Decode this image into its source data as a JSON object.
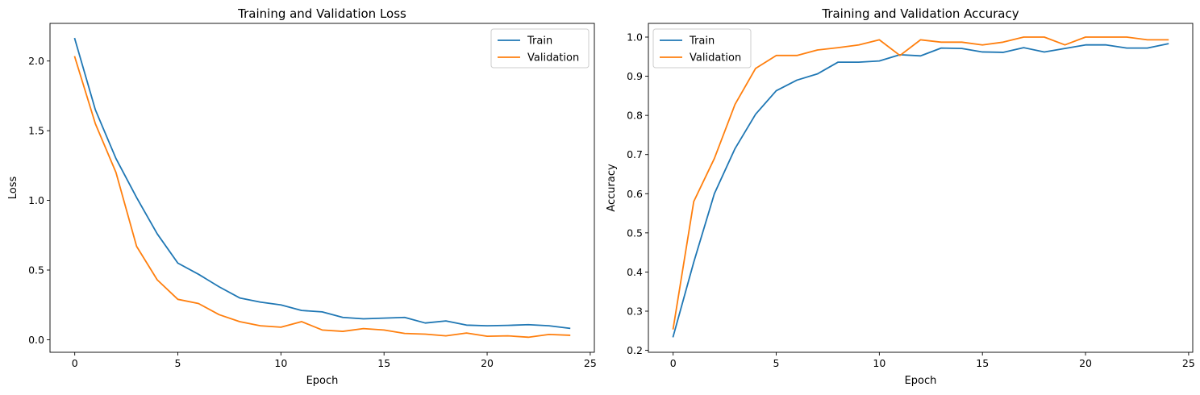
{
  "chart_data": [
    {
      "type": "line",
      "title": "Training and Validation Loss",
      "xlabel": "Epoch",
      "ylabel": "Loss",
      "xlim": [
        -1.2,
        25.2
      ],
      "ylim": [
        -0.09,
        2.27
      ],
      "xticks": [
        0,
        5,
        10,
        15,
        20,
        25
      ],
      "yticks": [
        0.0,
        0.5,
        1.0,
        1.5,
        2.0
      ],
      "ytick_labels": [
        "0.0",
        "0.5",
        "1.0",
        "1.5",
        "2.0"
      ],
      "legend_position": "upper right",
      "grid": false,
      "x": [
        0,
        1,
        2,
        3,
        4,
        5,
        6,
        7,
        8,
        9,
        10,
        11,
        12,
        13,
        14,
        15,
        16,
        17,
        18,
        19,
        20,
        21,
        22,
        23,
        24
      ],
      "series": [
        {
          "name": "Train",
          "color": "#1f77b4",
          "values": [
            2.16,
            1.65,
            1.3,
            1.02,
            0.76,
            0.55,
            0.47,
            0.38,
            0.3,
            0.27,
            0.25,
            0.21,
            0.2,
            0.16,
            0.15,
            0.155,
            0.16,
            0.12,
            0.135,
            0.105,
            0.1,
            0.103,
            0.108,
            0.1,
            0.082
          ]
        },
        {
          "name": "Validation",
          "color": "#ff7f0e",
          "values": [
            2.03,
            1.55,
            1.2,
            0.67,
            0.43,
            0.29,
            0.26,
            0.18,
            0.13,
            0.1,
            0.09,
            0.13,
            0.07,
            0.06,
            0.08,
            0.07,
            0.045,
            0.04,
            0.028,
            0.048,
            0.025,
            0.028,
            0.018,
            0.038,
            0.032
          ]
        }
      ]
    },
    {
      "type": "line",
      "title": "Training and Validation Accuracy",
      "xlabel": "Epoch",
      "ylabel": "Accuracy",
      "xlim": [
        -1.2,
        25.2
      ],
      "ylim": [
        0.195,
        1.035
      ],
      "xticks": [
        0,
        5,
        10,
        15,
        20,
        25
      ],
      "yticks": [
        0.2,
        0.3,
        0.4,
        0.5,
        0.6,
        0.7,
        0.8,
        0.9,
        1.0
      ],
      "ytick_labels": [
        "0.2",
        "0.3",
        "0.4",
        "0.5",
        "0.6",
        "0.7",
        "0.8",
        "0.9",
        "1.0"
      ],
      "legend_position": "upper left",
      "grid": false,
      "x": [
        0,
        1,
        2,
        3,
        4,
        5,
        6,
        7,
        8,
        9,
        10,
        11,
        12,
        13,
        14,
        15,
        16,
        17,
        18,
        19,
        20,
        21,
        22,
        23,
        24
      ],
      "series": [
        {
          "name": "Train",
          "color": "#1f77b4",
          "values": [
            0.235,
            0.425,
            0.6,
            0.715,
            0.803,
            0.863,
            0.89,
            0.906,
            0.936,
            0.936,
            0.939,
            0.955,
            0.952,
            0.972,
            0.971,
            0.962,
            0.961,
            0.973,
            0.962,
            0.971,
            0.98,
            0.98,
            0.972,
            0.972,
            0.983
          ]
        },
        {
          "name": "Validation",
          "color": "#ff7f0e",
          "values": [
            0.255,
            0.58,
            0.69,
            0.828,
            0.92,
            0.953,
            0.953,
            0.967,
            0.973,
            0.98,
            0.993,
            0.953,
            0.993,
            0.987,
            0.987,
            0.98,
            0.987,
            1.0,
            1.0,
            0.98,
            1.0,
            1.0,
            1.0,
            0.993,
            0.993
          ]
        }
      ]
    }
  ]
}
